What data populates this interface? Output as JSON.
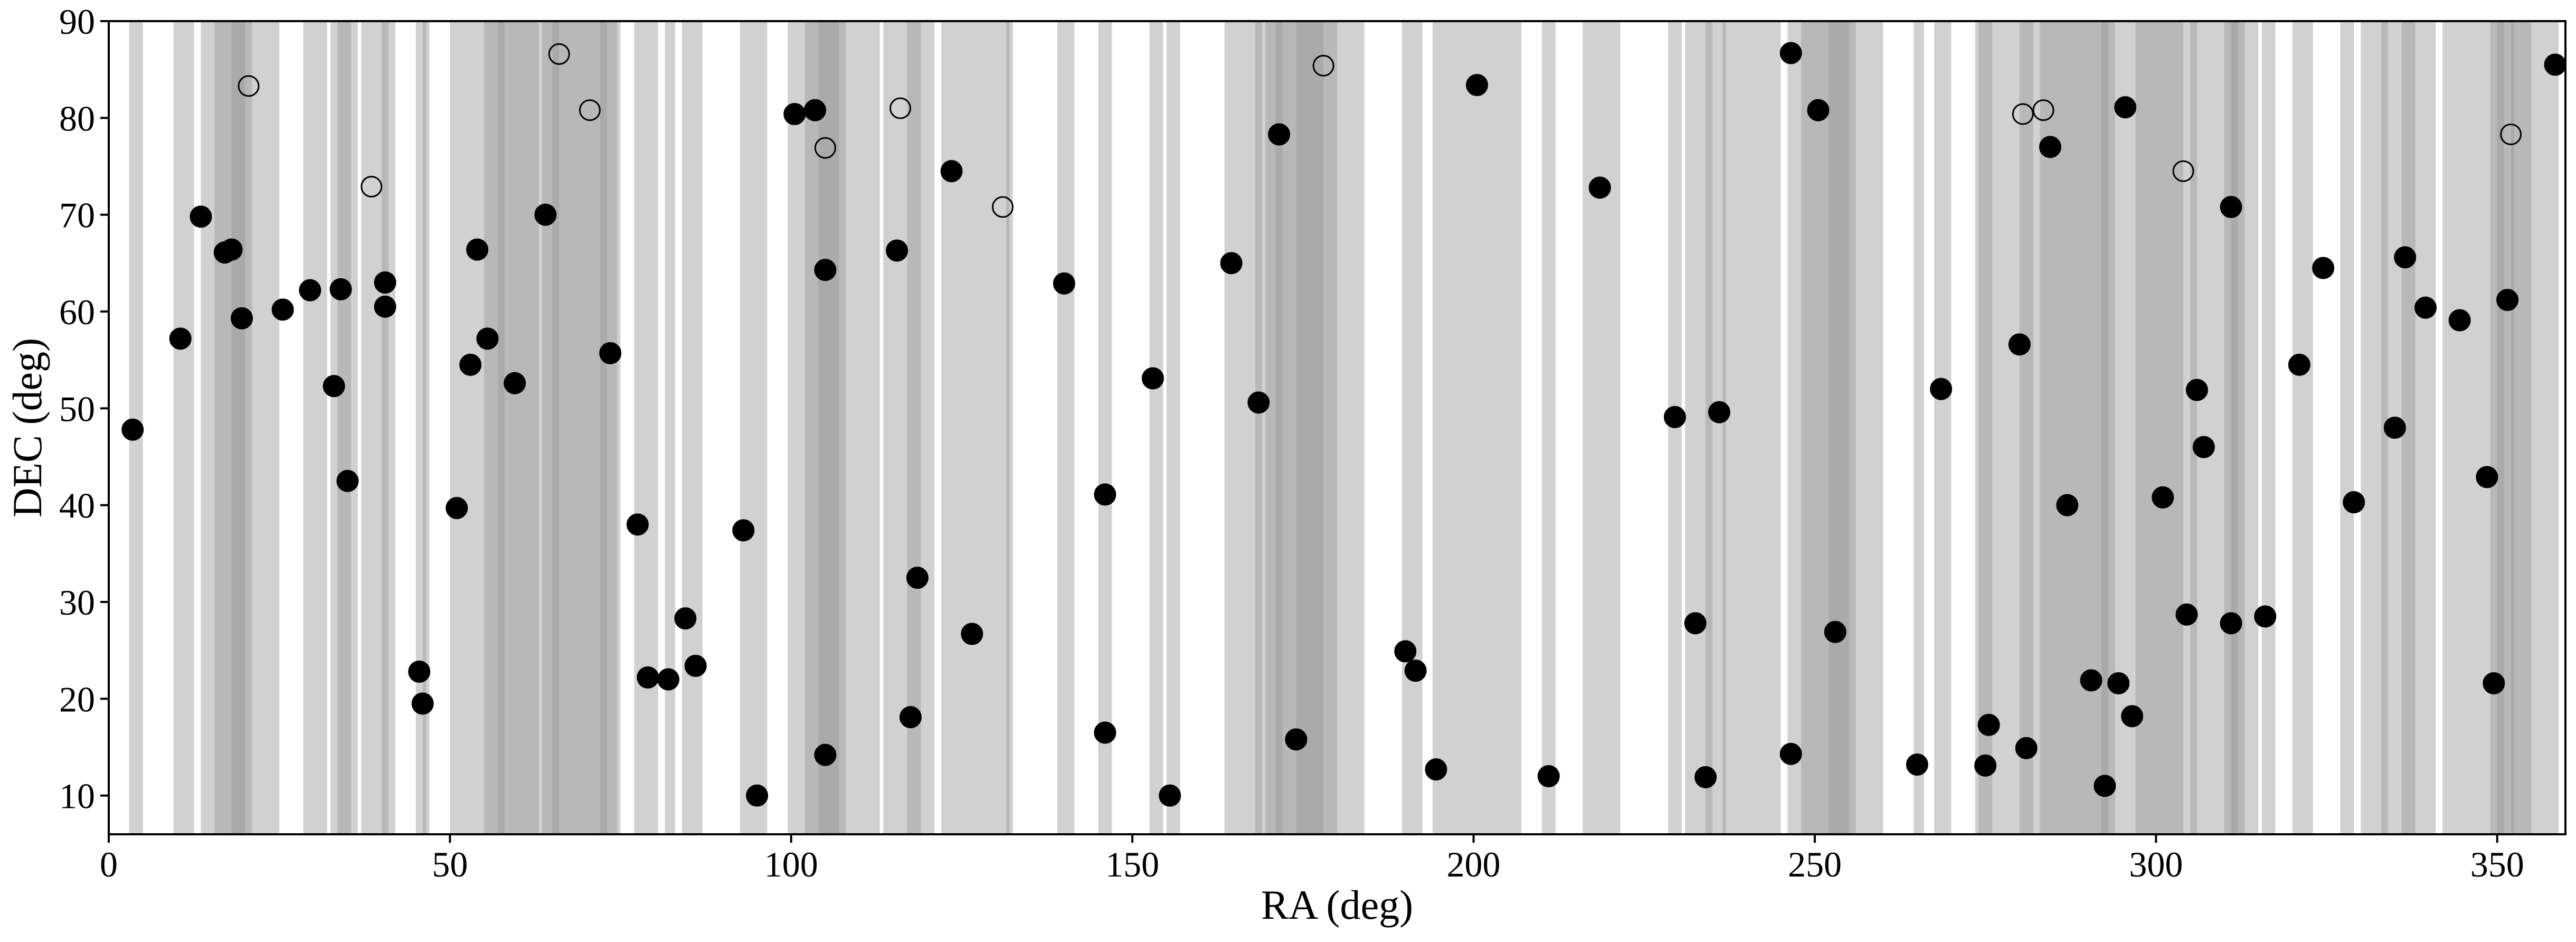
{
  "chart_data": {
    "type": "scatter",
    "title": "",
    "xlabel": "RA (deg)",
    "ylabel": "DEC (deg)",
    "xlim": [
      0,
      360
    ],
    "ylim": [
      6,
      90
    ],
    "xticks": [
      0,
      50,
      100,
      150,
      200,
      250,
      300,
      350
    ],
    "yticks": [
      10,
      20,
      30,
      40,
      50,
      60,
      70,
      80,
      90
    ],
    "grid": false,
    "legend": false,
    "colors": {
      "band": "#999999",
      "filled_marker": "#000000",
      "open_marker_edge": "#000000"
    },
    "shaded_ra_intervals": [
      [
        3,
        5
      ],
      [
        9.5,
        12.5
      ],
      [
        13.5,
        20
      ],
      [
        15.5,
        21
      ],
      [
        18,
        25
      ],
      [
        28.5,
        32
      ],
      [
        32.5,
        36.5
      ],
      [
        33.5,
        35.5
      ],
      [
        37,
        41
      ],
      [
        40,
        42
      ],
      [
        45,
        46.5
      ],
      [
        46,
        47
      ],
      [
        50,
        53
      ],
      [
        53,
        58
      ],
      [
        55,
        62
      ],
      [
        57,
        63
      ],
      [
        62,
        66
      ],
      [
        63.5,
        75
      ],
      [
        65,
        73
      ],
      [
        72,
        74.5
      ],
      [
        77,
        79
      ],
      [
        79,
        80.5
      ],
      [
        81.5,
        83
      ],
      [
        84,
        86
      ],
      [
        86,
        87
      ],
      [
        92.5,
        95
      ],
      [
        95,
        96.5
      ],
      [
        99.5,
        110
      ],
      [
        102,
        107
      ],
      [
        104,
        108
      ],
      [
        110,
        113
      ],
      [
        113.5,
        119
      ],
      [
        117,
        121
      ],
      [
        122,
        126.5
      ],
      [
        126.5,
        132
      ],
      [
        131.5,
        132.5
      ],
      [
        139,
        141.5
      ],
      [
        145,
        147
      ],
      [
        152.5,
        154.5
      ],
      [
        155,
        157
      ],
      [
        163.5,
        167
      ],
      [
        167,
        169
      ],
      [
        168,
        172
      ],
      [
        169.5,
        178
      ],
      [
        171,
        184
      ],
      [
        174,
        180
      ],
      [
        189.5,
        192.5
      ],
      [
        194,
        196
      ],
      [
        196,
        207
      ],
      [
        210,
        212
      ],
      [
        216,
        221.5
      ],
      [
        228.5,
        230.5
      ],
      [
        231,
        232.5
      ],
      [
        232.5,
        235
      ],
      [
        234,
        237
      ],
      [
        236.5,
        238
      ],
      [
        238,
        245
      ],
      [
        246,
        260
      ],
      [
        248,
        256
      ],
      [
        252,
        255
      ],
      [
        264.5,
        266
      ],
      [
        267.5,
        270
      ],
      [
        273.5,
        276
      ],
      [
        274,
        278
      ],
      [
        278,
        282
      ],
      [
        280,
        286
      ],
      [
        283,
        290
      ],
      [
        286,
        293
      ],
      [
        290,
        294
      ],
      [
        292,
        300
      ],
      [
        297,
        304
      ],
      [
        300,
        306
      ],
      [
        305,
        308
      ],
      [
        308,
        315
      ],
      [
        310,
        312
      ],
      [
        311,
        313
      ],
      [
        315.5,
        317.5
      ],
      [
        320,
        323
      ],
      [
        327,
        329
      ],
      [
        330,
        334
      ],
      [
        333,
        338
      ],
      [
        336,
        341
      ],
      [
        342,
        345
      ],
      [
        345,
        348
      ],
      [
        348,
        351
      ],
      [
        349,
        352.5
      ],
      [
        350,
        355
      ],
      [
        352,
        359
      ]
    ],
    "series": [
      {
        "marker": "filled circle",
        "points": [
          [
            3.5,
            47.8
          ],
          [
            10.5,
            57.2
          ],
          [
            13.5,
            69.8
          ],
          [
            17,
            66.1
          ],
          [
            18,
            66.4
          ],
          [
            19.5,
            59.3
          ],
          [
            25.5,
            60.2
          ],
          [
            29.5,
            62.2
          ],
          [
            33,
            52.3
          ],
          [
            34,
            62.3
          ],
          [
            35,
            42.5
          ],
          [
            40.5,
            63.0
          ],
          [
            40.5,
            60.5
          ],
          [
            45.5,
            22.8
          ],
          [
            46,
            19.5
          ],
          [
            51,
            39.7
          ],
          [
            53,
            54.5
          ],
          [
            54,
            66.4
          ],
          [
            55.5,
            57.2
          ],
          [
            59.5,
            52.6
          ],
          [
            64,
            70.0
          ],
          [
            73.5,
            55.7
          ],
          [
            77.5,
            38.0
          ],
          [
            79,
            22.2
          ],
          [
            82,
            22.0
          ],
          [
            84.5,
            28.3
          ],
          [
            86,
            23.4
          ],
          [
            93,
            37.4
          ],
          [
            95,
            10.0
          ],
          [
            100.5,
            80.4
          ],
          [
            103.5,
            80.8
          ],
          [
            105,
            64.3
          ],
          [
            105,
            14.2
          ],
          [
            115.5,
            66.3
          ],
          [
            117.5,
            18.1
          ],
          [
            118.5,
            32.5
          ],
          [
            123.5,
            74.5
          ],
          [
            126.5,
            26.7
          ],
          [
            140,
            62.9
          ],
          [
            146,
            41.1
          ],
          [
            146,
            16.5
          ],
          [
            153,
            53.1
          ],
          [
            155.5,
            10.0
          ],
          [
            164.5,
            65.0
          ],
          [
            168.5,
            50.6
          ],
          [
            171.5,
            78.3
          ],
          [
            174,
            15.8
          ],
          [
            190,
            24.9
          ],
          [
            191.5,
            22.9
          ],
          [
            194.5,
            12.7
          ],
          [
            200.5,
            83.4
          ],
          [
            211,
            12.0
          ],
          [
            218.5,
            72.8
          ],
          [
            229.5,
            49.1
          ],
          [
            232.5,
            27.8
          ],
          [
            234,
            11.9
          ],
          [
            236,
            49.6
          ],
          [
            246.5,
            86.7
          ],
          [
            246.5,
            14.3
          ],
          [
            250.5,
            80.8
          ],
          [
            253,
            26.9
          ],
          [
            265,
            13.2
          ],
          [
            268.5,
            52.0
          ],
          [
            275,
            13.1
          ],
          [
            275.5,
            17.3
          ],
          [
            280,
            56.6
          ],
          [
            281,
            14.9
          ],
          [
            284.5,
            77.0
          ],
          [
            287,
            40.0
          ],
          [
            290.5,
            21.9
          ],
          [
            292.5,
            11.0
          ],
          [
            294.5,
            21.6
          ],
          [
            295.5,
            81.1
          ],
          [
            296.5,
            18.2
          ],
          [
            301,
            40.8
          ],
          [
            304.5,
            28.7
          ],
          [
            306,
            51.9
          ],
          [
            307,
            46.0
          ],
          [
            311,
            70.8
          ],
          [
            311,
            27.8
          ],
          [
            316,
            28.5
          ],
          [
            321,
            54.5
          ],
          [
            324.5,
            64.5
          ],
          [
            329,
            40.3
          ],
          [
            335,
            48.0
          ],
          [
            336.5,
            65.6
          ],
          [
            339.5,
            60.4
          ],
          [
            344.5,
            59.1
          ],
          [
            348.5,
            42.9
          ],
          [
            349.5,
            21.6
          ],
          [
            351.5,
            61.2
          ],
          [
            358.5,
            85.5
          ]
        ]
      },
      {
        "marker": "open circle",
        "points": [
          [
            20.5,
            83.3
          ],
          [
            38.5,
            72.9
          ],
          [
            66,
            86.6
          ],
          [
            70.5,
            80.8
          ],
          [
            105,
            76.9
          ],
          [
            116,
            81.0
          ],
          [
            131,
            70.8
          ],
          [
            178,
            85.4
          ],
          [
            280.5,
            80.4
          ],
          [
            283.5,
            80.8
          ],
          [
            304,
            74.5
          ],
          [
            352,
            78.3
          ]
        ]
      }
    ]
  }
}
